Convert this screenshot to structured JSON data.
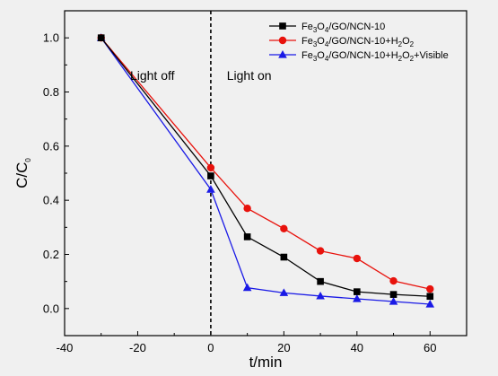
{
  "chart_data": {
    "type": "line",
    "xlabel": "t/min",
    "ylabel": {
      "main": "C/C",
      "sub": "0"
    },
    "xlim": [
      -40,
      70
    ],
    "ylim": [
      -0.1,
      1.1
    ],
    "xticks": [
      -40,
      -20,
      0,
      20,
      40,
      60
    ],
    "yticks": [
      0.0,
      0.2,
      0.4,
      0.6,
      0.8,
      1.0
    ],
    "xtick_labels": [
      "-40",
      "-20",
      "0",
      "20",
      "40",
      "60"
    ],
    "ytick_labels": [
      "0.0",
      "0.2",
      "0.4",
      "0.6",
      "0.8",
      "1.0"
    ],
    "divider_x": 0,
    "annotations": {
      "light_off": "Light off",
      "light_on": "Light on"
    },
    "legend_placement": "top-right",
    "x": [
      -30,
      0,
      10,
      20,
      30,
      40,
      50,
      60
    ],
    "series": [
      {
        "name": "Fe3O4/GO/NCN-10",
        "name_parts": [
          [
            "Fe",
            ""
          ],
          [
            "3",
            "sub"
          ],
          [
            "O",
            ""
          ],
          [
            "4",
            "sub"
          ],
          [
            "/GO/NCN-10",
            ""
          ]
        ],
        "values": [
          1.0,
          0.49,
          0.265,
          0.19,
          0.1,
          0.062,
          0.052,
          0.045
        ],
        "color": "#000000",
        "marker": "square"
      },
      {
        "name": "Fe3O4/GO/NCN-10+H2O2",
        "name_parts": [
          [
            "Fe",
            ""
          ],
          [
            "3",
            "sub"
          ],
          [
            "O",
            ""
          ],
          [
            "4",
            "sub"
          ],
          [
            "/GO/NCN-10+H",
            ""
          ],
          [
            "2",
            "sub"
          ],
          [
            "O",
            ""
          ],
          [
            "2",
            "sub"
          ]
        ],
        "values": [
          1.0,
          0.52,
          0.37,
          0.295,
          0.213,
          0.185,
          0.102,
          0.072
        ],
        "color": "#e8120c",
        "marker": "circle"
      },
      {
        "name": "Fe3O4/GO/NCN-10+H2O2+Visible",
        "name_parts": [
          [
            "Fe",
            ""
          ],
          [
            "3",
            "sub"
          ],
          [
            "O",
            ""
          ],
          [
            "4",
            "sub"
          ],
          [
            "/GO/NCN-10+H",
            ""
          ],
          [
            "2",
            "sub"
          ],
          [
            "O",
            ""
          ],
          [
            "2",
            "sub"
          ],
          [
            "+Visible",
            ""
          ]
        ],
        "values": [
          1.0,
          0.44,
          0.077,
          0.058,
          0.046,
          0.036,
          0.026,
          0.016
        ],
        "color": "#1a1ae6",
        "marker": "triangle"
      }
    ]
  }
}
